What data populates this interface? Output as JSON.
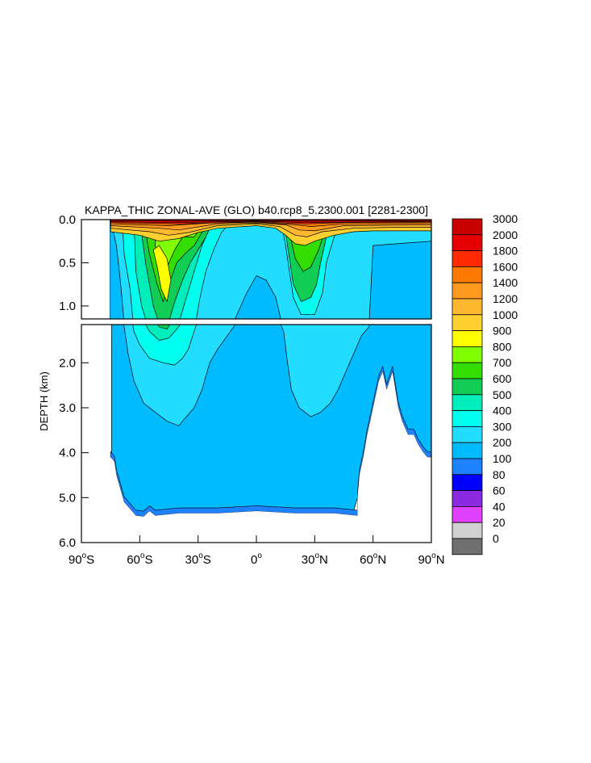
{
  "chart_data": {
    "type": "heatmap",
    "title": "KAPPA_THIC ZONAL-AVE (GLO) b40.rcp8_5.2300.001 [2281-2300]",
    "ylabel": "DEPTH (km)",
    "xlabel": "",
    "xlim": [
      -90,
      90
    ],
    "ylim": [
      6.0,
      0.0
    ],
    "split_depth": 1.15,
    "x_ticks": [
      {
        "value": -90,
        "num": "90",
        "hemi": "S"
      },
      {
        "value": -60,
        "num": "60",
        "hemi": "S"
      },
      {
        "value": -30,
        "num": "30",
        "hemi": "S"
      },
      {
        "value": 0,
        "num": "0",
        "hemi": ""
      },
      {
        "value": 30,
        "num": "30",
        "hemi": "N"
      },
      {
        "value": 60,
        "num": "60",
        "hemi": "N"
      },
      {
        "value": 90,
        "num": "90",
        "hemi": "N"
      }
    ],
    "y_ticks_upper": [
      "0.0",
      "0.5",
      "1.0"
    ],
    "y_ticks_lower": [
      "2.0",
      "3.0",
      "4.0",
      "5.0",
      "6.0"
    ],
    "legend_labels": [
      "3000",
      "2000",
      "1800",
      "1600",
      "1400",
      "1200",
      "1000",
      "900",
      "800",
      "700",
      "600",
      "500",
      "400",
      "300",
      "200",
      "100",
      "80",
      "60",
      "40",
      "20",
      "0"
    ],
    "legend_colors": [
      "#c80000",
      "#e60000",
      "#ff2a00",
      "#ff7a00",
      "#ff9a20",
      "#ffb830",
      "#ffd030",
      "#ffff00",
      "#80ff00",
      "#33dd00",
      "#11cc55",
      "#00eebb",
      "#00ffee",
      "#22ddff",
      "#00bbff",
      "#1e82ff",
      "#0000ff",
      "#8a2be2",
      "#e040ff",
      "#d0d0d0",
      "#707070"
    ],
    "levels": [
      {
        "level": 200,
        "color": "#00bbff",
        "points": [
          [
            -75.5,
            0.0
          ],
          [
            -75.5,
            1.15
          ],
          [
            -74.5,
            1.15
          ],
          [
            -74.5,
            4.1
          ],
          [
            -73,
            4.2
          ],
          [
            -72,
            4.5
          ],
          [
            -70,
            4.8
          ],
          [
            -68,
            5.1
          ],
          [
            -66,
            5.2
          ],
          [
            -62,
            5.35
          ],
          [
            -50,
            5.3
          ],
          [
            -40,
            5.3
          ],
          [
            -30,
            5.3
          ],
          [
            -20,
            5.3
          ],
          [
            -10,
            5.25
          ],
          [
            0,
            5.2
          ],
          [
            10,
            5.25
          ],
          [
            20,
            5.3
          ],
          [
            40,
            5.3
          ],
          [
            50,
            5.3
          ],
          [
            52,
            5.0
          ],
          [
            53,
            4.5
          ],
          [
            55,
            4.1
          ],
          [
            57,
            3.6
          ],
          [
            59,
            3.2
          ],
          [
            61,
            2.8
          ],
          [
            63,
            2.4
          ],
          [
            65,
            2.2
          ],
          [
            67,
            2.6
          ],
          [
            70,
            2.2
          ],
          [
            73,
            3.0
          ],
          [
            75,
            3.3
          ],
          [
            78,
            3.5
          ],
          [
            81,
            3.6
          ],
          [
            83,
            3.8
          ],
          [
            86,
            4.0
          ],
          [
            88,
            4.1
          ],
          [
            90,
            4.1
          ],
          [
            90,
            0.0
          ]
        ]
      },
      {
        "level": 300,
        "color": "#22ddff",
        "points": [
          [
            -75,
            0.0
          ],
          [
            -72,
            0.3
          ],
          [
            -70,
            0.7
          ],
          [
            -68,
            1.2
          ],
          [
            -66,
            1.8
          ],
          [
            -63,
            2.4
          ],
          [
            -58,
            2.9
          ],
          [
            -52,
            3.1
          ],
          [
            -46,
            3.3
          ],
          [
            -40,
            3.4
          ],
          [
            -36,
            3.2
          ],
          [
            -32,
            3.0
          ],
          [
            -28,
            2.6
          ],
          [
            -24,
            2.0
          ],
          [
            -20,
            1.7
          ],
          [
            -15,
            1.4
          ],
          [
            -10,
            1.1
          ],
          [
            -5,
            0.85
          ],
          [
            0,
            0.65
          ],
          [
            5,
            0.7
          ],
          [
            10,
            0.9
          ],
          [
            14,
            1.3
          ],
          [
            16,
            2.0
          ],
          [
            18,
            2.6
          ],
          [
            22,
            3.0
          ],
          [
            28,
            3.2
          ],
          [
            33,
            3.1
          ],
          [
            38,
            2.9
          ],
          [
            42,
            2.6
          ],
          [
            46,
            2.2
          ],
          [
            50,
            1.8
          ],
          [
            54,
            1.4
          ],
          [
            58,
            1.2
          ],
          [
            60,
            0.3
          ],
          [
            90,
            0.25
          ],
          [
            90,
            0.0
          ]
        ]
      },
      {
        "level": 400,
        "color": "#00ffee",
        "points": [
          [
            -69,
            0.0
          ],
          [
            -68,
            0.4
          ],
          [
            -65,
            0.8
          ],
          [
            -63,
            1.3
          ],
          [
            -60,
            1.6
          ],
          [
            -55,
            1.9
          ],
          [
            -48,
            2.0
          ],
          [
            -42,
            2.05
          ],
          [
            -38,
            1.9
          ],
          [
            -35,
            1.7
          ],
          [
            -32,
            1.3
          ],
          [
            -29,
            0.9
          ],
          [
            -26,
            0.6
          ],
          [
            -22,
            0.35
          ],
          [
            -18,
            0.15
          ],
          [
            -14,
            0.05
          ],
          [
            0,
            0.0
          ],
          [
            13,
            0.05
          ],
          [
            15,
            0.3
          ],
          [
            17,
            0.6
          ],
          [
            19,
            0.9
          ],
          [
            23,
            1.1
          ],
          [
            30,
            1.1
          ],
          [
            34,
            0.85
          ],
          [
            36,
            0.5
          ],
          [
            40,
            0.2
          ],
          [
            44,
            0.08
          ],
          [
            50,
            0.0
          ]
        ]
      },
      {
        "level": 500,
        "color": "#00eebb",
        "points": [
          [
            -63,
            0.0
          ],
          [
            -62,
            0.6
          ],
          [
            -59,
            1.0
          ],
          [
            -55,
            1.3
          ],
          [
            -50,
            1.5
          ],
          [
            -45,
            1.45
          ],
          [
            -40,
            1.2
          ],
          [
            -36,
            0.9
          ],
          [
            -32,
            0.6
          ],
          [
            -28,
            0.3
          ],
          [
            -24,
            0.1
          ],
          [
            -20,
            0.0
          ]
        ]
      },
      {
        "level": 600,
        "color": "#11cc55",
        "points": [
          [
            -60,
            0.0
          ],
          [
            -57,
            0.5
          ],
          [
            -53,
            1.0
          ],
          [
            -50,
            1.2
          ],
          [
            -46,
            1.25
          ],
          [
            -42,
            0.95
          ],
          [
            -38,
            0.7
          ],
          [
            -34,
            0.5
          ],
          [
            -30,
            0.35
          ],
          [
            -26,
            0.2
          ],
          [
            -23,
            0.05
          ],
          [
            -22,
            0.0
          ]
        ]
      },
      {
        "level": 600,
        "color": "#11cc55",
        "points": [
          [
            14,
            0.0
          ],
          [
            16,
            0.3
          ],
          [
            19,
            0.75
          ],
          [
            23,
            0.95
          ],
          [
            28,
            0.9
          ],
          [
            31,
            0.75
          ],
          [
            33,
            0.5
          ],
          [
            36,
            0.2
          ],
          [
            40,
            0.05
          ],
          [
            44,
            0.0
          ]
        ]
      },
      {
        "level": 700,
        "color": "#33dd00",
        "points": [
          [
            -58,
            0.0
          ],
          [
            -55,
            0.4
          ],
          [
            -51,
            0.75
          ],
          [
            -48,
            0.95
          ],
          [
            -45,
            0.75
          ],
          [
            -41,
            0.5
          ],
          [
            -36,
            0.38
          ],
          [
            -32,
            0.3
          ],
          [
            -28,
            0.15
          ],
          [
            -24,
            0.0
          ]
        ]
      },
      {
        "level": 700,
        "color": "#33dd00",
        "points": [
          [
            16,
            0.0
          ],
          [
            18,
            0.25
          ],
          [
            20,
            0.45
          ],
          [
            24,
            0.6
          ],
          [
            28,
            0.55
          ],
          [
            32,
            0.35
          ],
          [
            35,
            0.15
          ],
          [
            38,
            0.0
          ]
        ]
      },
      {
        "level": 800,
        "color": "#80ff00",
        "points": [
          [
            -52,
            0.0
          ],
          [
            -52,
            0.3
          ],
          [
            -49,
            0.6
          ],
          [
            -46,
            0.55
          ],
          [
            -42,
            0.35
          ],
          [
            -38,
            0.2
          ],
          [
            -32,
            0.2
          ],
          [
            -28,
            0.08
          ],
          [
            -26,
            0.0
          ]
        ]
      },
      {
        "level": 900,
        "color": "#ffff00",
        "points": [
          [
            -53,
            0.35
          ],
          [
            -51,
            0.55
          ],
          [
            -49,
            0.8
          ],
          [
            -46,
            0.95
          ],
          [
            -44,
            0.7
          ],
          [
            -46,
            0.45
          ],
          [
            -50,
            0.3
          ]
        ]
      },
      {
        "level": 1000,
        "color": "#ffd030",
        "points": [
          [
            -75,
            0.0
          ],
          [
            -75,
            0.14
          ],
          [
            -60,
            0.18
          ],
          [
            -50,
            0.25
          ],
          [
            -40,
            0.22
          ],
          [
            -30,
            0.15
          ],
          [
            -20,
            0.1
          ],
          [
            0,
            0.07
          ],
          [
            10,
            0.1
          ],
          [
            15,
            0.18
          ],
          [
            20,
            0.28
          ],
          [
            25,
            0.3
          ],
          [
            30,
            0.25
          ],
          [
            40,
            0.18
          ],
          [
            50,
            0.14
          ],
          [
            60,
            0.13
          ],
          [
            75,
            0.13
          ],
          [
            90,
            0.13
          ],
          [
            90,
            0.0
          ]
        ]
      },
      {
        "level": 1200,
        "color": "#ffb830",
        "points": [
          [
            -75,
            0.0
          ],
          [
            -75,
            0.1
          ],
          [
            -55,
            0.14
          ],
          [
            -45,
            0.18
          ],
          [
            -35,
            0.15
          ],
          [
            -20,
            0.07
          ],
          [
            0,
            0.05
          ],
          [
            12,
            0.08
          ],
          [
            20,
            0.18
          ],
          [
            26,
            0.2
          ],
          [
            34,
            0.14
          ],
          [
            50,
            0.1
          ],
          [
            70,
            0.09
          ],
          [
            90,
            0.09
          ],
          [
            90,
            0.0
          ]
        ]
      },
      {
        "level": 1400,
        "color": "#ff9a20",
        "points": [
          [
            -75,
            0.0
          ],
          [
            -75,
            0.07
          ],
          [
            -50,
            0.1
          ],
          [
            -40,
            0.12
          ],
          [
            -20,
            0.05
          ],
          [
            0,
            0.04
          ],
          [
            15,
            0.06
          ],
          [
            22,
            0.12
          ],
          [
            30,
            0.13
          ],
          [
            45,
            0.07
          ],
          [
            90,
            0.06
          ],
          [
            90,
            0.0
          ]
        ]
      },
      {
        "level": 1600,
        "color": "#ff7a00",
        "points": [
          [
            -75,
            0.0
          ],
          [
            -75,
            0.05
          ],
          [
            -45,
            0.07
          ],
          [
            -25,
            0.04
          ],
          [
            0,
            0.03
          ],
          [
            20,
            0.06
          ],
          [
            28,
            0.08
          ],
          [
            45,
            0.05
          ],
          [
            90,
            0.045
          ],
          [
            90,
            0.0
          ]
        ]
      },
      {
        "level": 1800,
        "color": "#ff2a00",
        "points": [
          [
            -75,
            0.0
          ],
          [
            -75,
            0.035
          ],
          [
            -40,
            0.05
          ],
          [
            0,
            0.025
          ],
          [
            25,
            0.05
          ],
          [
            45,
            0.035
          ],
          [
            90,
            0.03
          ],
          [
            90,
            0.0
          ]
        ]
      },
      {
        "level": 2000,
        "color": "#e60000",
        "points": [
          [
            -75,
            0.0
          ],
          [
            -75,
            0.025
          ],
          [
            -40,
            0.035
          ],
          [
            0,
            0.018
          ],
          [
            25,
            0.035
          ],
          [
            90,
            0.022
          ],
          [
            90,
            0.0
          ]
        ]
      },
      {
        "level": 3000,
        "color": "#c80000",
        "points": [
          [
            -75,
            0.0
          ],
          [
            -75,
            0.012
          ],
          [
            -40,
            0.018
          ],
          [
            0,
            0.01
          ],
          [
            25,
            0.018
          ],
          [
            90,
            0.012
          ],
          [
            90,
            0.0
          ]
        ]
      }
    ],
    "bottom_bathymetry": [
      [
        -75,
        4.1
      ],
      [
        -73,
        4.2
      ],
      [
        -72,
        4.5
      ],
      [
        -70,
        4.8
      ],
      [
        -68,
        5.1
      ],
      [
        -66,
        5.2
      ],
      [
        -62,
        5.4
      ],
      [
        -58,
        5.42
      ],
      [
        -55,
        5.3
      ],
      [
        -52,
        5.4
      ],
      [
        -40,
        5.35
      ],
      [
        -20,
        5.35
      ],
      [
        0,
        5.3
      ],
      [
        20,
        5.35
      ],
      [
        40,
        5.35
      ],
      [
        52,
        5.4
      ],
      [
        52,
        5.0
      ],
      [
        53,
        4.5
      ],
      [
        55,
        4.1
      ],
      [
        57,
        3.6
      ],
      [
        59,
        3.2
      ],
      [
        61,
        2.8
      ],
      [
        63,
        2.4
      ],
      [
        65,
        2.2
      ],
      [
        67,
        2.6
      ],
      [
        70,
        2.2
      ],
      [
        73,
        3.0
      ],
      [
        75,
        3.3
      ],
      [
        78,
        3.6
      ],
      [
        81,
        3.6
      ],
      [
        83,
        3.8
      ],
      [
        86,
        4.0
      ],
      [
        88,
        4.1
      ],
      [
        90,
        4.1
      ]
    ]
  }
}
